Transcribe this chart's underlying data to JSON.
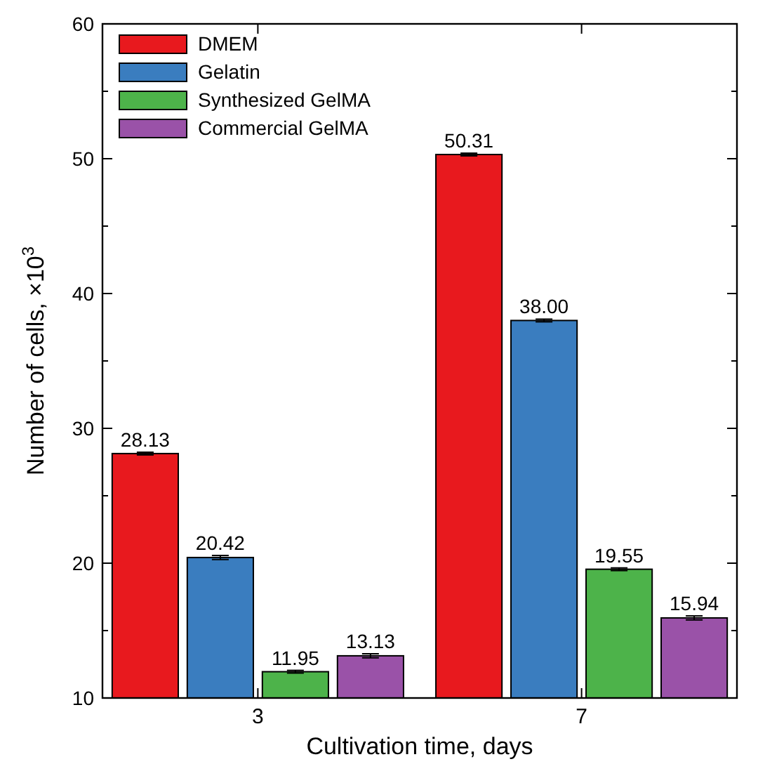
{
  "chart_data": {
    "type": "bar",
    "xlabel": "Cultivation time, days",
    "ylabel": "Number of cells, ×10$^{3}$",
    "categories": [
      "3",
      "7"
    ],
    "series": [
      {
        "name": "DMEM",
        "color": "#e8191e",
        "values": [
          28.13,
          50.31
        ],
        "value_labels": [
          "28.13",
          "50.31"
        ],
        "errors": [
          0.1,
          0.1
        ]
      },
      {
        "name": "Gelatin",
        "color": "#3a7dbf",
        "values": [
          20.42,
          38.0
        ],
        "value_labels": [
          "20.42",
          "38.00"
        ],
        "errors": [
          0.15,
          0.1
        ]
      },
      {
        "name": "Synthesized GelMA",
        "color": "#4db34a",
        "values": [
          11.95,
          19.55
        ],
        "value_labels": [
          "11.95",
          "19.55"
        ],
        "errors": [
          0.1,
          0.1
        ]
      },
      {
        "name": "Commercial GelMA",
        "color": "#9a52a8",
        "values": [
          13.13,
          15.94
        ],
        "value_labels": [
          "13.13",
          "15.94"
        ],
        "errors": [
          0.15,
          0.15
        ]
      }
    ],
    "ylim": [
      10,
      60
    ],
    "yticks": [
      10,
      20,
      30,
      40,
      50,
      60
    ],
    "legend": "top left",
    "grid": false
  }
}
